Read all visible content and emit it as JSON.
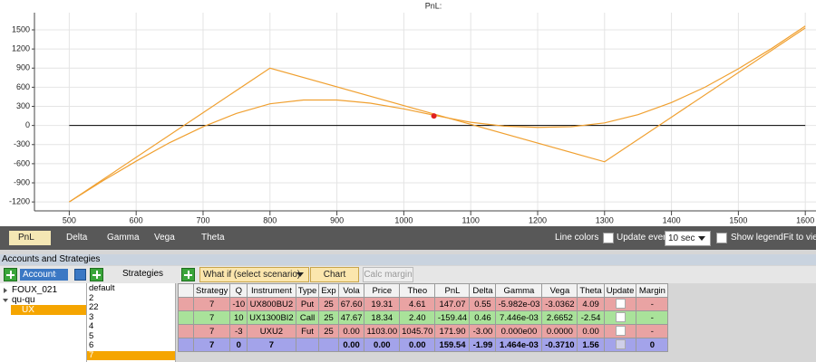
{
  "chart_data": {
    "type": "line",
    "title": "PnL:",
    "xlim": [
      448,
      1616
    ],
    "ylim": [
      -1340,
      1770
    ],
    "xticks": [
      500,
      600,
      700,
      800,
      900,
      1000,
      1100,
      1200,
      1300,
      1400,
      1500,
      1600
    ],
    "yticks": [
      1500,
      1200,
      900,
      600,
      300,
      0,
      -300,
      -600,
      -900,
      -1200
    ],
    "grid": true,
    "zero_line_color": "#000000",
    "series": [
      {
        "color": "#f0a030",
        "x": [
          500,
          800,
          1300,
          1600
        ],
        "values": [
          -1200,
          900,
          -570,
          1530
        ]
      },
      {
        "color": "#f0a030",
        "x": [
          500,
          550,
          600,
          650,
          700,
          750,
          800,
          850,
          900,
          950,
          1000,
          1050,
          1100,
          1150,
          1200,
          1250,
          1300,
          1350,
          1400,
          1450,
          1500,
          1550,
          1600
        ],
        "values": [
          -1200,
          -870,
          -560,
          -270,
          -20,
          190,
          340,
          400,
          400,
          350,
          260,
          150,
          50,
          -10,
          -30,
          -20,
          40,
          170,
          360,
          600,
          890,
          1210,
          1560
        ]
      }
    ],
    "marker": {
      "x": 1045,
      "value": 150,
      "color": "#e02020"
    }
  },
  "toolbar": {
    "tabs": [
      "PnL",
      "Delta",
      "Gamma",
      "Vega",
      "Theta"
    ],
    "line_colors": "Line colors",
    "update_every": "Update every",
    "interval": "10 sec",
    "show_legend": "Show legend",
    "fit": "Fit to view"
  },
  "panel": {
    "title": "Accounts and Strategies",
    "accounts": "Accounts",
    "strategies_label": "Strategies",
    "tree": [
      "FOUX_021",
      "qu-qu",
      "UX"
    ],
    "strategies": [
      "default",
      "2",
      "22",
      "3",
      "4",
      "5",
      "6",
      "7"
    ]
  },
  "scenario": {
    "what_if": "What if (select scenario)",
    "chart": "Chart",
    "calc_margin": "Calc margin"
  },
  "table": {
    "columns": [
      "Strategy",
      "Q",
      "Instrument",
      "Type",
      "Exp",
      "Vola",
      "Price",
      "Theo",
      "PnL",
      "Delta",
      "Gamma",
      "Vega",
      "Theta",
      "Update",
      "Margin"
    ],
    "rows": [
      {
        "color": "#e9a3a3",
        "bold": false,
        "cells": [
          "7",
          "-10",
          "UX800BU2",
          "Put",
          "25",
          "67.60",
          "19.31",
          "4.61",
          "147.07",
          "0.55",
          "-5.982e-03",
          "-3.0362",
          "4.09",
          null,
          "-"
        ]
      },
      {
        "color": "#a9e29a",
        "bold": false,
        "cells": [
          "7",
          "10",
          "UX1300BI2",
          "Call",
          "25",
          "47.67",
          "18.34",
          "2.40",
          "-159.44",
          "0.46",
          "7.446e-03",
          "2.6652",
          "-2.54",
          null,
          "-"
        ]
      },
      {
        "color": "#e9a3a3",
        "bold": false,
        "cells": [
          "7",
          "-3",
          "UXU2",
          "Fut",
          "25",
          "0.00",
          "1103.00",
          "1045.70",
          "171.90",
          "-3.00",
          "0.000e00",
          "0.0000",
          "0.00",
          null,
          "-"
        ]
      },
      {
        "color": "#a3a3ea",
        "bold": true,
        "cells": [
          "7",
          "0",
          "7",
          null,
          null,
          "0.00",
          "0.00",
          "0.00",
          "159.54",
          "-1.99",
          "1.464e-03",
          "-0.3710",
          "1.56",
          null,
          "0"
        ]
      }
    ]
  }
}
